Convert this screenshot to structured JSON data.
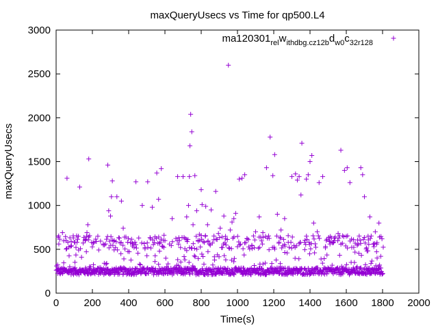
{
  "chart_data": {
    "type": "scatter",
    "title": "maxQueryUsecs vs Time for qp500.L4",
    "xlabel": "Time(s)",
    "ylabel": "maxQueryUsecs",
    "xlim": [
      0,
      2000
    ],
    "ylim": [
      0,
      3000
    ],
    "x_ticks": [
      "0",
      "200",
      "400",
      "600",
      "800",
      "1000",
      "1200",
      "1400",
      "1600",
      "1800",
      "2000"
    ],
    "y_ticks": [
      "0",
      "500",
      "1000",
      "1500",
      "2000",
      "2500",
      "3000"
    ],
    "grid": false,
    "legend_position": "top-right",
    "legend": {
      "base": "ma120301",
      "segments": [
        {
          "text": "rel",
          "sub": true
        },
        {
          "text": "w",
          "sub": false
        },
        {
          "text": "ithdbg.cz12b",
          "sub": true
        },
        {
          "text": "d",
          "sub": false
        },
        {
          "text": "w0",
          "sub": true
        },
        {
          "text": "c",
          "sub": false
        },
        {
          "text": "32r128",
          "sub": true
        }
      ]
    },
    "series": [
      {
        "marker": "+",
        "color": "#9400d3",
        "points": [
          [
            2,
            310
          ],
          [
            8,
            270
          ],
          [
            15,
            560
          ],
          [
            25,
            240
          ],
          [
            35,
            690
          ],
          [
            45,
            260
          ],
          [
            55,
            600
          ],
          [
            60,
            1310
          ],
          [
            75,
            300
          ],
          [
            85,
            540
          ],
          [
            95,
            630
          ],
          [
            105,
            250
          ],
          [
            115,
            580
          ],
          [
            130,
            1210
          ],
          [
            140,
            410
          ],
          [
            150,
            260
          ],
          [
            160,
            600
          ],
          [
            170,
            690
          ],
          [
            175,
            780
          ],
          [
            180,
            1530
          ],
          [
            190,
            300
          ],
          [
            205,
            570
          ],
          [
            215,
            250
          ],
          [
            230,
            650
          ],
          [
            245,
            290
          ],
          [
            260,
            560
          ],
          [
            275,
            330
          ],
          [
            285,
            1460
          ],
          [
            290,
            940
          ],
          [
            300,
            880
          ],
          [
            305,
            1100
          ],
          [
            310,
            1280
          ],
          [
            320,
            600
          ],
          [
            335,
            1100
          ],
          [
            345,
            280
          ],
          [
            360,
            1050
          ],
          [
            370,
            740
          ],
          [
            385,
            640
          ],
          [
            400,
            260
          ],
          [
            420,
            570
          ],
          [
            440,
            1270
          ],
          [
            460,
            330
          ],
          [
            475,
            1000
          ],
          [
            490,
            520
          ],
          [
            505,
            1270
          ],
          [
            520,
            620
          ],
          [
            530,
            980
          ],
          [
            545,
            360
          ],
          [
            555,
            1370
          ],
          [
            565,
            1070
          ],
          [
            580,
            1420
          ],
          [
            595,
            660
          ],
          [
            610,
            300
          ],
          [
            625,
            560
          ],
          [
            640,
            850
          ],
          [
            660,
            270
          ],
          [
            670,
            1330
          ],
          [
            680,
            600
          ],
          [
            700,
            1330
          ],
          [
            710,
            380
          ],
          [
            720,
            870
          ],
          [
            730,
            1000
          ],
          [
            735,
            1330
          ],
          [
            738,
            1680
          ],
          [
            742,
            2040
          ],
          [
            748,
            1840
          ],
          [
            755,
            780
          ],
          [
            765,
            1340
          ],
          [
            775,
            940
          ],
          [
            790,
            670
          ],
          [
            800,
            1180
          ],
          [
            805,
            1010
          ],
          [
            815,
            330
          ],
          [
            825,
            990
          ],
          [
            835,
            780
          ],
          [
            845,
            560
          ],
          [
            855,
            950
          ],
          [
            870,
            610
          ],
          [
            880,
            1160
          ],
          [
            895,
            680
          ],
          [
            905,
            740
          ],
          [
            915,
            640
          ],
          [
            925,
            880
          ],
          [
            935,
            620
          ],
          [
            950,
            2600
          ],
          [
            960,
            720
          ],
          [
            970,
            810
          ],
          [
            980,
            850
          ],
          [
            990,
            910
          ],
          [
            1000,
            530
          ],
          [
            1010,
            1300
          ],
          [
            1025,
            1310
          ],
          [
            1040,
            1350
          ],
          [
            1060,
            610
          ],
          [
            1080,
            540
          ],
          [
            1100,
            700
          ],
          [
            1120,
            870
          ],
          [
            1140,
            690
          ],
          [
            1160,
            1430
          ],
          [
            1180,
            1780
          ],
          [
            1195,
            1340
          ],
          [
            1205,
            1580
          ],
          [
            1220,
            900
          ],
          [
            1240,
            720
          ],
          [
            1260,
            850
          ],
          [
            1280,
            580
          ],
          [
            1300,
            1330
          ],
          [
            1320,
            1360
          ],
          [
            1330,
            1290
          ],
          [
            1340,
            1330
          ],
          [
            1350,
            1120
          ],
          [
            1355,
            1710
          ],
          [
            1370,
            580
          ],
          [
            1380,
            1300
          ],
          [
            1390,
            1350
          ],
          [
            1400,
            1500
          ],
          [
            1410,
            1570
          ],
          [
            1420,
            800
          ],
          [
            1440,
            700
          ],
          [
            1450,
            1260
          ],
          [
            1470,
            1330
          ],
          [
            1490,
            600
          ],
          [
            1510,
            560
          ],
          [
            1530,
            580
          ],
          [
            1555,
            680
          ],
          [
            1570,
            1630
          ],
          [
            1590,
            1400
          ],
          [
            1605,
            1430
          ],
          [
            1620,
            1260
          ],
          [
            1640,
            610
          ],
          [
            1660,
            300
          ],
          [
            1680,
            1430
          ],
          [
            1690,
            1350
          ],
          [
            1700,
            1100
          ],
          [
            1720,
            650
          ],
          [
            1730,
            870
          ],
          [
            1750,
            560
          ],
          [
            1760,
            700
          ],
          [
            1770,
            400
          ],
          [
            1780,
            800
          ],
          [
            1790,
            420
          ]
        ],
        "dense_bands": [
          {
            "x_range": [
              0,
              1800
            ],
            "y_center": 250,
            "spread": 40,
            "note": "dense baseline"
          },
          {
            "x_range": [
              0,
              1800
            ],
            "y_center": 580,
            "spread": 60,
            "note": "secondary band"
          }
        ]
      }
    ]
  }
}
